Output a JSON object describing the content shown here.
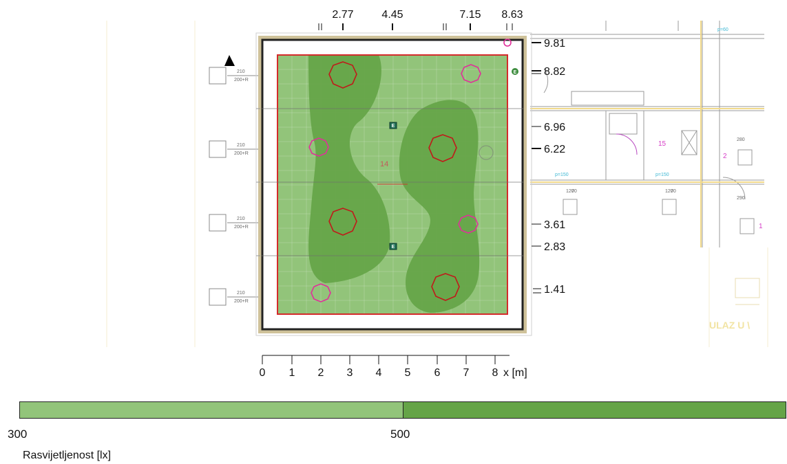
{
  "plan": {
    "room_label": "14",
    "room_labels_right": [
      "15",
      "2",
      "1"
    ],
    "door_labels": [
      "210",
      "200+R"
    ],
    "opening_labels": [
      "p=60",
      "p=150",
      "p=150"
    ],
    "window_labels": [
      "120",
      "70",
      "280",
      "290"
    ],
    "entrance_text": "ULAZ U \\"
  },
  "axes": {
    "x_unit_label": "x [m]",
    "x_ticks": [
      "0",
      "1",
      "2",
      "3",
      "4",
      "5",
      "6",
      "7",
      "8"
    ],
    "top_positions": [
      "2.77",
      "4.45",
      "7.15",
      "8.63"
    ],
    "right_positions": [
      "9.81",
      "8.82",
      "6.96",
      "6.22",
      "3.61",
      "2.83",
      "1.41"
    ]
  },
  "luminaires": {
    "large_count": 5,
    "small_count": 4,
    "emergency_count": 3,
    "emergency_symbol": "E"
  },
  "legend": {
    "title": "Rasvijetljenost [lx]",
    "min_label": "300",
    "mid_label": "500",
    "colors": {
      "low": "#92c47a",
      "high": "#65a447"
    }
  }
}
